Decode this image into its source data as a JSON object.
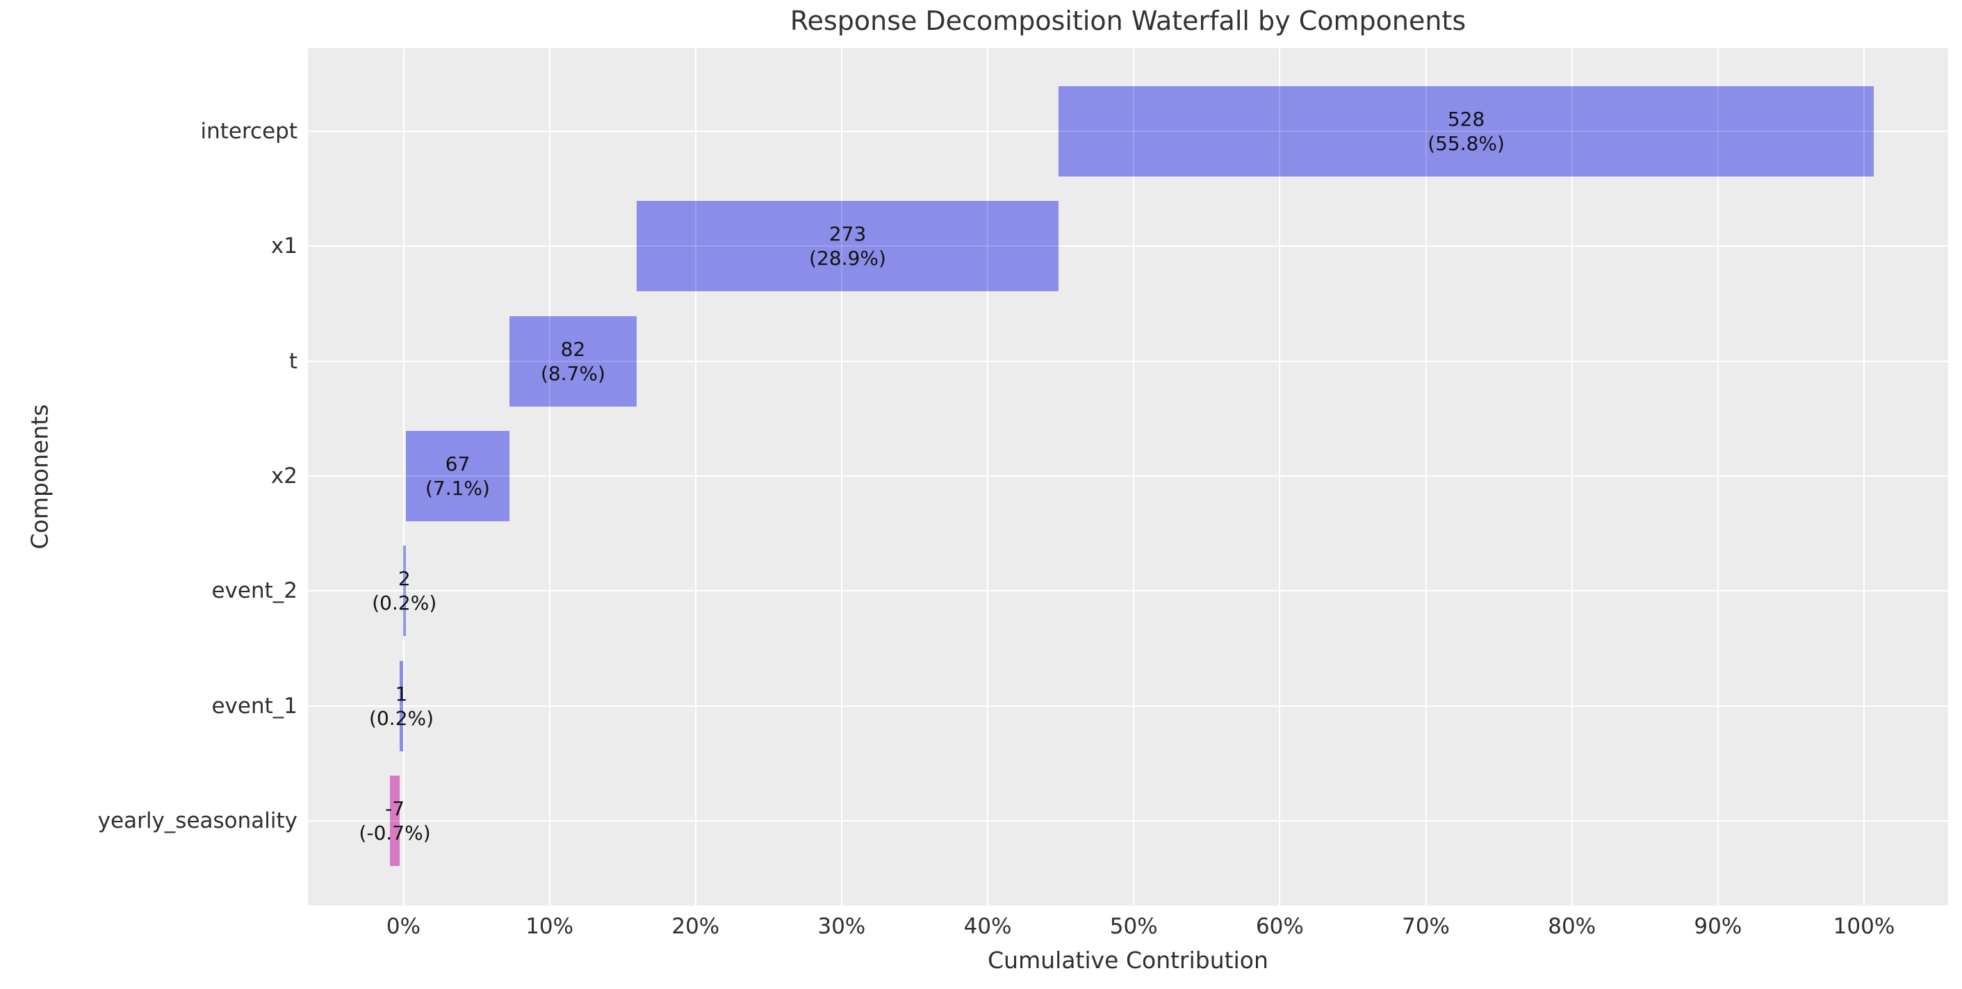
{
  "colors": {
    "page_background": "#ffffff",
    "plot_background": "#ececec",
    "gridline": "#ffffff",
    "positive_bar": "#8b8ee9",
    "negative_bar": "#d77ac3",
    "title_text": "#323232",
    "tick_text": "#2e2e2e",
    "bar_label_text": "#111111"
  },
  "chart_data": {
    "type": "bar",
    "subtype": "horizontal-waterfall",
    "title": "Response Decomposition Waterfall by Components",
    "xlabel": "Cumulative Contribution",
    "ylabel": "Components",
    "grid": "on",
    "legend": "none",
    "xlim_pct": [
      -6.5,
      105.8
    ],
    "x_ticks": [
      {
        "value": 0,
        "label": "0%"
      },
      {
        "value": 10,
        "label": "10%"
      },
      {
        "value": 20,
        "label": "20%"
      },
      {
        "value": 30,
        "label": "30%"
      },
      {
        "value": 40,
        "label": "40%"
      },
      {
        "value": 50,
        "label": "50%"
      },
      {
        "value": 60,
        "label": "60%"
      },
      {
        "value": 70,
        "label": "70%"
      },
      {
        "value": 80,
        "label": "80%"
      },
      {
        "value": 90,
        "label": "90%"
      },
      {
        "value": 100,
        "label": "100%"
      }
    ],
    "categories": [
      "intercept",
      "x1",
      "t",
      "x2",
      "event_2",
      "event_1",
      "yearly_seasonality"
    ],
    "values": [
      528,
      273,
      82,
      67,
      2,
      1,
      -7
    ],
    "bars": [
      {
        "category": "intercept",
        "value": 528,
        "value_label": "528",
        "pct_label": "(55.8%)",
        "start_pct": 44.86,
        "end_pct": 100.66,
        "sign": "positive"
      },
      {
        "category": "x1",
        "value": 273,
        "value_label": "273",
        "pct_label": "(28.9%)",
        "start_pct": 15.96,
        "end_pct": 44.86,
        "sign": "positive"
      },
      {
        "category": "t",
        "value": 82,
        "value_label": "82",
        "pct_label": "(8.7%)",
        "start_pct": 7.26,
        "end_pct": 15.96,
        "sign": "positive"
      },
      {
        "category": "x2",
        "value": 67,
        "value_label": "67",
        "pct_label": "(7.1%)",
        "start_pct": 0.16,
        "end_pct": 7.26,
        "sign": "positive"
      },
      {
        "category": "event_2",
        "value": 2,
        "value_label": "2",
        "pct_label": "(0.2%)",
        "start_pct": -0.04,
        "end_pct": 0.16,
        "sign": "positive"
      },
      {
        "category": "event_1",
        "value": 1,
        "value_label": "1",
        "pct_label": "(0.2%)",
        "start_pct": -0.24,
        "end_pct": -0.04,
        "sign": "positive"
      },
      {
        "category": "yearly_seasonality",
        "value": -7,
        "value_label": "-7",
        "pct_label": "(-0.7%)",
        "start_pct": -0.94,
        "end_pct": -0.24,
        "sign": "negative"
      }
    ]
  }
}
